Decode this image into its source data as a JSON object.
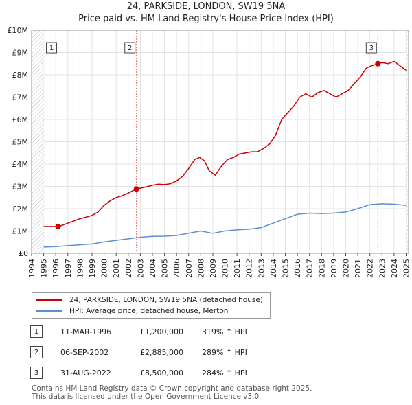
{
  "title_line1": "24, PARKSIDE, LONDON, SW19 5NA",
  "title_line2": "Price paid vs. HM Land Registry's House Price Index (HPI)",
  "chart_data": {
    "type": "line",
    "xlim": [
      1994,
      2025.2
    ],
    "ylim": [
      0,
      10000000
    ],
    "y_ticks": [
      0,
      1000000,
      2000000,
      3000000,
      4000000,
      5000000,
      6000000,
      7000000,
      8000000,
      9000000,
      10000000
    ],
    "y_tick_labels": [
      "£0",
      "£1M",
      "£2M",
      "£3M",
      "£4M",
      "£5M",
      "£6M",
      "£7M",
      "£8M",
      "£9M",
      "£10M"
    ],
    "x_ticks": [
      1994,
      1995,
      1996,
      1997,
      1998,
      1999,
      2000,
      2001,
      2002,
      2003,
      2004,
      2005,
      2006,
      2007,
      2008,
      2009,
      2010,
      2011,
      2012,
      2013,
      2014,
      2015,
      2016,
      2017,
      2018,
      2019,
      2020,
      2021,
      2022,
      2023,
      2024,
      2025
    ],
    "series": [
      {
        "name": "24, PARKSIDE, LONDON, SW19 5NA (detached house)",
        "color": "#cc0000",
        "points": [
          [
            1995,
            1200000
          ],
          [
            1996.19,
            1200000
          ],
          [
            1996.5,
            1250000
          ],
          [
            1997,
            1350000
          ],
          [
            1997.5,
            1450000
          ],
          [
            1998,
            1550000
          ],
          [
            1998.5,
            1620000
          ],
          [
            1999,
            1700000
          ],
          [
            1999.5,
            1850000
          ],
          [
            2000,
            2150000
          ],
          [
            2000.5,
            2350000
          ],
          [
            2001,
            2500000
          ],
          [
            2001.5,
            2580000
          ],
          [
            2002,
            2700000
          ],
          [
            2002.68,
            2885000
          ],
          [
            2003,
            2920000
          ],
          [
            2003.5,
            2980000
          ],
          [
            2004,
            3050000
          ],
          [
            2004.5,
            3100000
          ],
          [
            2005,
            3080000
          ],
          [
            2005.5,
            3120000
          ],
          [
            2006,
            3250000
          ],
          [
            2006.5,
            3450000
          ],
          [
            2007,
            3800000
          ],
          [
            2007.5,
            4200000
          ],
          [
            2007.9,
            4300000
          ],
          [
            2008.3,
            4150000
          ],
          [
            2008.7,
            3700000
          ],
          [
            2009.2,
            3500000
          ],
          [
            2009.7,
            3900000
          ],
          [
            2010.2,
            4200000
          ],
          [
            2010.7,
            4300000
          ],
          [
            2011.2,
            4450000
          ],
          [
            2011.7,
            4500000
          ],
          [
            2012.2,
            4550000
          ],
          [
            2012.7,
            4550000
          ],
          [
            2013.2,
            4700000
          ],
          [
            2013.7,
            4900000
          ],
          [
            2014.2,
            5300000
          ],
          [
            2014.7,
            6000000
          ],
          [
            2015.2,
            6300000
          ],
          [
            2015.7,
            6600000
          ],
          [
            2016.2,
            7000000
          ],
          [
            2016.7,
            7150000
          ],
          [
            2017.2,
            7000000
          ],
          [
            2017.7,
            7200000
          ],
          [
            2018.2,
            7300000
          ],
          [
            2018.7,
            7150000
          ],
          [
            2019.2,
            7000000
          ],
          [
            2019.7,
            7150000
          ],
          [
            2020.2,
            7300000
          ],
          [
            2020.7,
            7600000
          ],
          [
            2021.2,
            7900000
          ],
          [
            2021.7,
            8300000
          ],
          [
            2022.1,
            8400000
          ],
          [
            2022.66,
            8500000
          ],
          [
            2023,
            8550000
          ],
          [
            2023.5,
            8500000
          ],
          [
            2024,
            8600000
          ],
          [
            2024.5,
            8400000
          ],
          [
            2025,
            8200000
          ]
        ]
      },
      {
        "name": "HPI: Average price, detached house, Merton",
        "color": "#5b8fd0",
        "points": [
          [
            1995,
            280000
          ],
          [
            1996,
            300000
          ],
          [
            1997,
            340000
          ],
          [
            1998,
            380000
          ],
          [
            1999,
            420000
          ],
          [
            2000,
            510000
          ],
          [
            2001,
            580000
          ],
          [
            2002,
            650000
          ],
          [
            2003,
            720000
          ],
          [
            2004,
            760000
          ],
          [
            2005,
            770000
          ],
          [
            2006,
            800000
          ],
          [
            2007,
            900000
          ],
          [
            2008,
            1000000
          ],
          [
            2009,
            900000
          ],
          [
            2010,
            1000000
          ],
          [
            2011,
            1050000
          ],
          [
            2012,
            1080000
          ],
          [
            2013,
            1150000
          ],
          [
            2014,
            1350000
          ],
          [
            2015,
            1550000
          ],
          [
            2016,
            1750000
          ],
          [
            2017,
            1800000
          ],
          [
            2018,
            1780000
          ],
          [
            2019,
            1800000
          ],
          [
            2020,
            1850000
          ],
          [
            2021,
            2000000
          ],
          [
            2022,
            2180000
          ],
          [
            2023,
            2220000
          ],
          [
            2024,
            2200000
          ],
          [
            2025,
            2150000
          ]
        ]
      }
    ],
    "sale_markers": [
      {
        "label": "1",
        "x": 1996.19,
        "y": 1200000
      },
      {
        "label": "2",
        "x": 2002.68,
        "y": 2885000
      },
      {
        "label": "3",
        "x": 2022.66,
        "y": 8500000
      }
    ],
    "hatched_regions": [
      [
        1994,
        1995
      ],
      [
        2025,
        2025.2
      ]
    ]
  },
  "legend": {
    "property_label": "24, PARKSIDE, LONDON, SW19 5NA (detached house)",
    "hpi_label": "HPI: Average price, detached house, Merton"
  },
  "sales": [
    {
      "num": "1",
      "date": "11-MAR-1996",
      "price": "£1,200,000",
      "hpi": "319% ↑ HPI"
    },
    {
      "num": "2",
      "date": "06-SEP-2002",
      "price": "£2,885,000",
      "hpi": "289% ↑ HPI"
    },
    {
      "num": "3",
      "date": "31-AUG-2022",
      "price": "£8,500,000",
      "hpi": "284% ↑ HPI"
    }
  ],
  "footer_line1": "Contains HM Land Registry data © Crown copyright and database right 2025.",
  "footer_line2": "This data is licensed under the Open Government Licence v3.0."
}
